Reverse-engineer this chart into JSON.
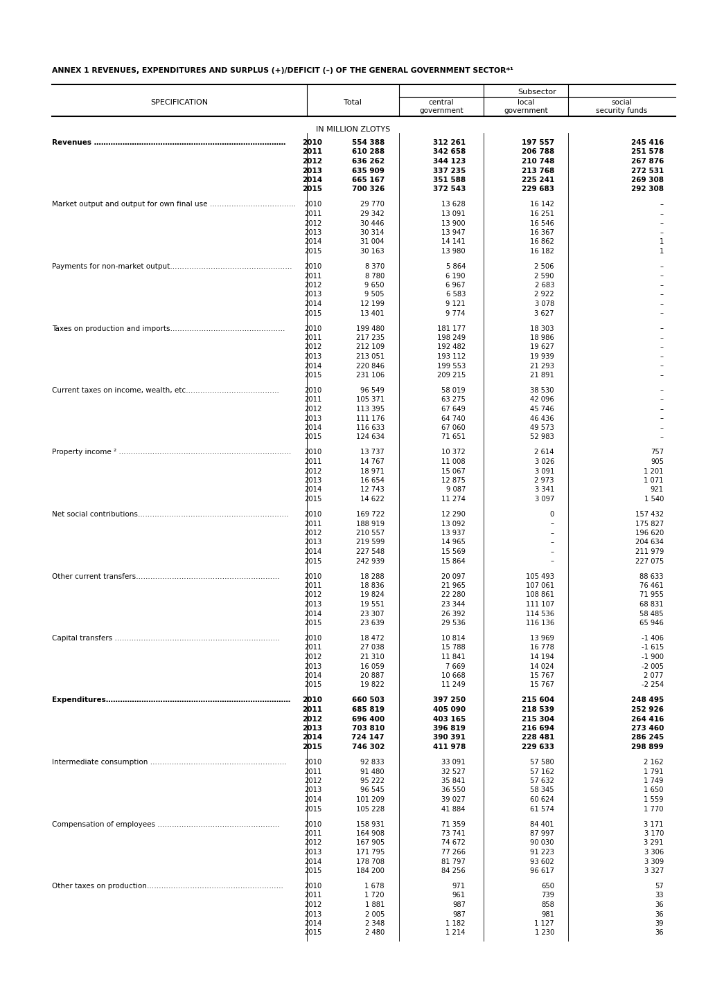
{
  "title": "ANNEX 1 REVENUES, EXPENDITURES AND SURPLUS (+)/DEFICIT (–) OF THE GENERAL GOVERNMENT SECTOR*¹",
  "subtitle": "IN MILLION ZLOTYS",
  "rows": [
    {
      "label": "Revenues ………………………………………………………………………",
      "bold": true,
      "years": [
        "2010",
        "2011",
        "2012",
        "2013",
        "2014",
        "2015"
      ],
      "total": [
        "554 388",
        "610 288",
        "636 262",
        "635 909",
        "665 167",
        "700 326"
      ],
      "central": [
        "312 261",
        "342 658",
        "344 123",
        "337 235",
        "351 588",
        "372 543"
      ],
      "local": [
        "197 557",
        "206 788",
        "210 748",
        "213 768",
        "225 241",
        "229 683"
      ],
      "social": [
        "245 416",
        "251 578",
        "267 876",
        "272 531",
        "269 308",
        "292 308"
      ]
    },
    {
      "label": "Market output and output for own final use ………………………………",
      "bold": false,
      "years": [
        "2010",
        "2011",
        "2012",
        "2013",
        "2014",
        "2015"
      ],
      "total": [
        "29 770",
        "29 342",
        "30 446",
        "30 314",
        "31 004",
        "30 163"
      ],
      "central": [
        "13 628",
        "13 091",
        "13 900",
        "13 947",
        "14 141",
        "13 980"
      ],
      "local": [
        "16 142",
        "16 251",
        "16 546",
        "16 367",
        "16 862",
        "16 182"
      ],
      "social": [
        "–",
        "–",
        "–",
        "–",
        "1",
        "1"
      ]
    },
    {
      "label": "Payments for non-market output……………………………………………",
      "bold": false,
      "years": [
        "2010",
        "2011",
        "2012",
        "2013",
        "2014",
        "2015"
      ],
      "total": [
        "8 370",
        "8 780",
        "9 650",
        "9 505",
        "12 199",
        "13 401"
      ],
      "central": [
        "5 864",
        "6 190",
        "6 967",
        "6 583",
        "9 121",
        "9 774"
      ],
      "local": [
        "2 506",
        "2 590",
        "2 683",
        "2 922",
        "3 078",
        "3 627"
      ],
      "social": [
        "–",
        "–",
        "–",
        "–",
        "–",
        "–"
      ]
    },
    {
      "label": "Taxes on production and imports…………………………………………",
      "bold": false,
      "years": [
        "2010",
        "2011",
        "2012",
        "2013",
        "2014",
        "2015"
      ],
      "total": [
        "199 480",
        "217 235",
        "212 109",
        "213 051",
        "220 846",
        "231 106"
      ],
      "central": [
        "181 177",
        "198 249",
        "192 482",
        "193 112",
        "199 553",
        "209 215"
      ],
      "local": [
        "18 303",
        "18 986",
        "19 627",
        "19 939",
        "21 293",
        "21 891"
      ],
      "social": [
        "–",
        "–",
        "–",
        "–",
        "–",
        "–"
      ]
    },
    {
      "label": "Current taxes on income, wealth, etc…………………………………",
      "bold": false,
      "years": [
        "2010",
        "2011",
        "2012",
        "2013",
        "2014",
        "2015"
      ],
      "total": [
        "96 549",
        "105 371",
        "113 395",
        "111 176",
        "116 633",
        "124 634"
      ],
      "central": [
        "58 019",
        "63 275",
        "67 649",
        "64 740",
        "67 060",
        "71 651"
      ],
      "local": [
        "38 530",
        "42 096",
        "45 746",
        "46 436",
        "49 573",
        "52 983"
      ],
      "social": [
        "–",
        "–",
        "–",
        "–",
        "–",
        "–"
      ]
    },
    {
      "label": "Property income ² ………………………………………………………………",
      "bold": false,
      "years": [
        "2010",
        "2011",
        "2012",
        "2013",
        "2014",
        "2015"
      ],
      "total": [
        "13 737",
        "14 767",
        "18 971",
        "16 654",
        "12 743",
        "14 622"
      ],
      "central": [
        "10 372",
        "11 008",
        "15 067",
        "12 875",
        "9 087",
        "11 274"
      ],
      "local": [
        "2 614",
        "3 026",
        "3 091",
        "2 973",
        "3 341",
        "3 097"
      ],
      "social": [
        "757",
        "905",
        "1 201",
        "1 071",
        "921",
        "1 540"
      ]
    },
    {
      "label": "Net social contributions………………………………………………………",
      "bold": false,
      "years": [
        "2010",
        "2011",
        "2012",
        "2013",
        "2014",
        "2015"
      ],
      "total": [
        "169 722",
        "188 919",
        "210 557",
        "219 599",
        "227 548",
        "242 939"
      ],
      "central": [
        "12 290",
        "13 092",
        "13 937",
        "14 965",
        "15 569",
        "15 864"
      ],
      "local": [
        "0",
        "–",
        "–",
        "–",
        "–",
        "–"
      ],
      "social": [
        "157 432",
        "175 827",
        "196 620",
        "204 634",
        "211 979",
        "227 075"
      ]
    },
    {
      "label": "Other current transfers……………………………………………………",
      "bold": false,
      "years": [
        "2010",
        "2011",
        "2012",
        "2013",
        "2014",
        "2015"
      ],
      "total": [
        "18 288",
        "18 836",
        "19 824",
        "19 551",
        "23 307",
        "23 639"
      ],
      "central": [
        "20 097",
        "21 965",
        "22 280",
        "23 344",
        "26 392",
        "29 536"
      ],
      "local": [
        "105 493",
        "107 061",
        "108 861",
        "111 107",
        "114 536",
        "116 136"
      ],
      "social": [
        "88 633",
        "76 461",
        "71 955",
        "68 831",
        "58 485",
        "65 946"
      ]
    },
    {
      "label": "Capital transfers ……………………………………………………………",
      "bold": false,
      "years": [
        "2010",
        "2011",
        "2012",
        "2013",
        "2014",
        "2015"
      ],
      "total": [
        "18 472",
        "27 038",
        "21 310",
        "16 059",
        "20 887",
        "19 822"
      ],
      "central": [
        "10 814",
        "15 788",
        "11 841",
        "7 669",
        "10 668",
        "11 249"
      ],
      "local": [
        "13 969",
        "16 778",
        "14 194",
        "14 024",
        "15 767",
        "15 767"
      ],
      "social": [
        "-1 406",
        "-1 615",
        "-1 900",
        "-2 005",
        "2 077",
        "-2 254"
      ]
    },
    {
      "label": "Expenditures……………………………………………………………………",
      "bold": true,
      "years": [
        "2010",
        "2011",
        "2012",
        "2013",
        "2014",
        "2015"
      ],
      "total": [
        "660 503",
        "685 819",
        "696 400",
        "703 810",
        "724 147",
        "746 302"
      ],
      "central": [
        "397 250",
        "405 090",
        "403 165",
        "396 819",
        "390 391",
        "411 978"
      ],
      "local": [
        "215 604",
        "218 539",
        "215 304",
        "216 694",
        "228 481",
        "229 633"
      ],
      "social": [
        "248 495",
        "252 926",
        "264 416",
        "273 460",
        "286 245",
        "298 899"
      ]
    },
    {
      "label": "Intermediate consumption …………………………………………………",
      "bold": false,
      "years": [
        "2010",
        "2011",
        "2012",
        "2013",
        "2014",
        "2015"
      ],
      "total": [
        "92 833",
        "91 480",
        "95 222",
        "96 545",
        "101 209",
        "105 228"
      ],
      "central": [
        "33 091",
        "32 527",
        "35 841",
        "36 550",
        "39 027",
        "41 884"
      ],
      "local": [
        "57 580",
        "57 162",
        "57 632",
        "58 345",
        "60 624",
        "61 574"
      ],
      "social": [
        "2 162",
        "1 791",
        "1 749",
        "1 650",
        "1 559",
        "1 770"
      ]
    },
    {
      "label": "Compensation of employees ……………………………………………",
      "bold": false,
      "years": [
        "2010",
        "2011",
        "2012",
        "2013",
        "2014",
        "2015"
      ],
      "total": [
        "158 931",
        "164 908",
        "167 905",
        "171 795",
        "178 708",
        "184 200"
      ],
      "central": [
        "71 359",
        "73 741",
        "74 672",
        "77 266",
        "81 797",
        "84 256"
      ],
      "local": [
        "84 401",
        "87 997",
        "90 030",
        "91 223",
        "93 602",
        "96 617"
      ],
      "social": [
        "3 171",
        "3 170",
        "3 291",
        "3 306",
        "3 309",
        "3 327"
      ]
    },
    {
      "label": "Other taxes on production…………………………………………………",
      "bold": false,
      "years": [
        "2010",
        "2011",
        "2012",
        "2013",
        "2014",
        "2015"
      ],
      "total": [
        "1 678",
        "1 720",
        "1 881",
        "2 005",
        "2 348",
        "2 480"
      ],
      "central": [
        "971",
        "961",
        "987",
        "987",
        "1 182",
        "1 214"
      ],
      "local": [
        "650",
        "739",
        "858",
        "981",
        "1 127",
        "1 230"
      ],
      "social": [
        "57",
        "33",
        "36",
        "36",
        "39",
        "36"
      ]
    }
  ],
  "bg_color": "#ffffff",
  "text_color": "#000000"
}
